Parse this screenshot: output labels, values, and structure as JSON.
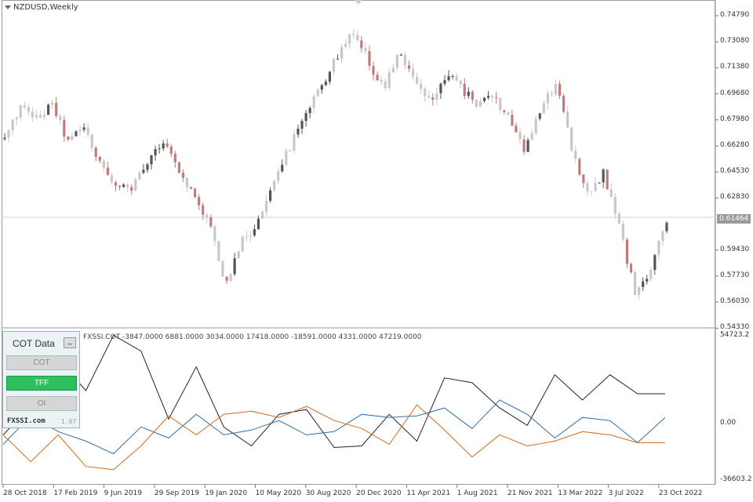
{
  "chart": {
    "symbol": "NZDUSD,Weekly",
    "current_price": "0.61464",
    "price_levels": [
      "0.74790",
      "0.73080",
      "0.71380",
      "0.69680",
      "0.67980",
      "0.66280",
      "0.64530",
      "0.62830",
      "0.61130",
      "0.59430",
      "0.57730",
      "0.56030",
      "0.54330"
    ],
    "indicator_label": "FXSSI.COT -3847.0000 6881.0000 3034.0000 17418.0000 -18591.0000 4331.0000 47219.0000",
    "indicator_scale": [
      "54723.2",
      "0.00",
      "-36603.2"
    ],
    "dates": [
      "28 Oct 2018",
      "17 Feb 2019",
      "9 Jun 2019",
      "29 Sep 2019",
      "19 Jan 2020",
      "10 May 2020",
      "30 Aug 2020",
      "20 Dec 2020",
      "11 Apr 2021",
      "1 Aug 2021",
      "21 Nov 2021",
      "13 Mar 2022",
      "3 Jul 2022",
      "23 Oct 2022"
    ],
    "colors": {
      "bull": "#555555",
      "bear": "#c47a7a",
      "neutral": "#c8c8c8",
      "black_line": "#222222",
      "blue_line": "#2f6fa6",
      "orange_line": "#d2691e"
    }
  },
  "cot_panel": {
    "title": "COT Data",
    "minimize": "_",
    "buttons": [
      "COT",
      "TFF",
      "OI"
    ],
    "active": "TFF",
    "brand": "FXSSI.com",
    "version": "1.07"
  },
  "chart_data": {
    "type": "line",
    "price_keypoints": [
      0.667,
      0.688,
      0.68,
      0.69,
      0.665,
      0.675,
      0.652,
      0.638,
      0.633,
      0.65,
      0.667,
      0.648,
      0.63,
      0.612,
      0.57,
      0.6,
      0.61,
      0.64,
      0.66,
      0.68,
      0.7,
      0.72,
      0.735,
      0.72,
      0.7,
      0.725,
      0.705,
      0.69,
      0.71,
      0.7,
      0.69,
      0.695,
      0.68,
      0.66,
      0.685,
      0.705,
      0.66,
      0.63,
      0.645,
      0.61,
      0.565,
      0.58,
      0.615
    ],
    "series": [
      {
        "name": "",
        "values": [
          -8000,
          10000,
          40000,
          20000,
          55000,
          45000,
          2000,
          35000,
          -3000,
          -15000,
          5000,
          8000,
          -16000,
          -15000,
          5000,
          -12000,
          28000,
          25000,
          9000,
          -2000,
          30000,
          14000,
          30000,
          18000,
          18000
        ]
      },
      {
        "name": "",
        "values": [
          -14000,
          4000,
          -6000,
          -12000,
          -20000,
          -3000,
          -10000,
          5000,
          -8000,
          -5000,
          1000,
          -8000,
          -6000,
          5000,
          3000,
          4000,
          9000,
          -4000,
          14000,
          5000,
          -10000,
          3000,
          1000,
          -13000,
          3000
        ]
      },
      {
        "name": "",
        "values": [
          -8000,
          -25000,
          -8000,
          -28000,
          -30000,
          -15000,
          4000,
          -8000,
          5000,
          7000,
          3000,
          10000,
          1000,
          -4000,
          -14000,
          11000,
          -5000,
          -22000,
          -8000,
          -15000,
          -12000,
          -6000,
          -8000,
          -13000,
          -13000
        ]
      }
    ]
  }
}
